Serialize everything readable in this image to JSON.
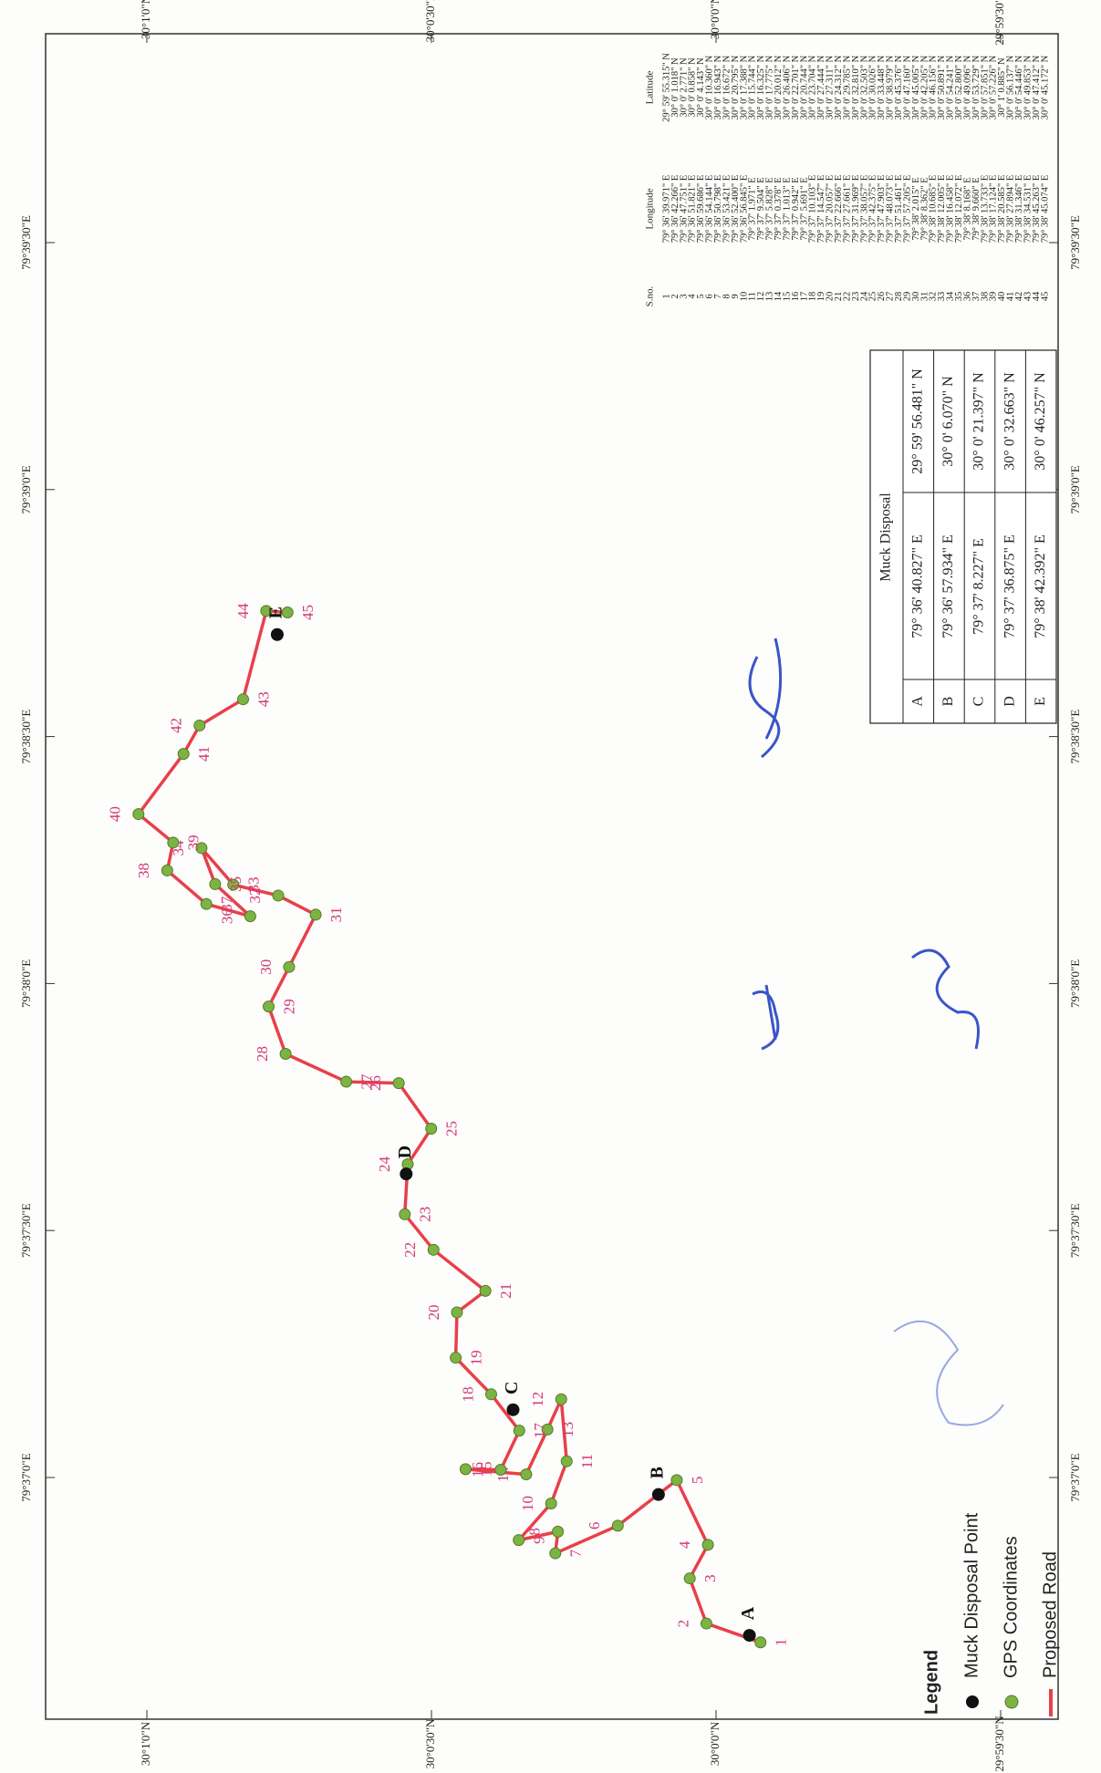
{
  "map": {
    "lat_ticks": [
      "30°1'0\"N",
      "30°0'30\"N",
      "30°0'0\"N",
      "29°59'30\"N"
    ],
    "lon_ticks": [
      "79°37'0\"E",
      "79°37'30\"E",
      "79°38'0\"E",
      "79°38'30\"E",
      "79°39'0\"E",
      "79°39'30\"E"
    ]
  },
  "gps_table": {
    "header": [
      "S.no.",
      "Longitude",
      "Latitude"
    ],
    "rows": [
      [
        "1",
        "79° 36' 39.971\" E",
        "29° 59' 55.315\" N"
      ],
      [
        "2",
        "79° 36' 42.266\" E",
        "30° 0' 1.018\" N"
      ],
      [
        "3",
        "79° 36' 47.751\" E",
        "30° 0' 2.771\" N"
      ],
      [
        "4",
        "79° 36' 51.821\" E",
        "30° 0' 0.858\" N"
      ],
      [
        "5",
        "79° 36' 59.686\" E",
        "30° 0' 4.143\" N"
      ],
      [
        "6",
        "79° 36' 54.144\" E",
        "30° 0' 10.360\" N"
      ],
      [
        "7",
        "79° 36' 50.798\" E",
        "30° 0' 16.943\" N"
      ],
      [
        "8",
        "79° 36' 53.421\" E",
        "30° 0' 16.672\" N"
      ],
      [
        "9",
        "79° 36' 52.400\" E",
        "30° 0' 20.795\" N"
      ],
      [
        "10",
        "79° 36' 56.845\" E",
        "30° 0' 17.388\" N"
      ],
      [
        "11",
        "79° 37' 1.971\" E",
        "30° 0' 15.744\" N"
      ],
      [
        "12",
        "79° 37' 9.504\" E",
        "30° 0' 16.325\" N"
      ],
      [
        "13",
        "79° 37' 5.828\" E",
        "30° 0' 17.775\" N"
      ],
      [
        "14",
        "79° 37' 0.378\" E",
        "30° 0' 20.012\" N"
      ],
      [
        "15",
        "79° 37' 1.013\" E",
        "30° 0' 26.406\" N"
      ],
      [
        "16",
        "79° 37' 0.942\" E",
        "30° 0' 22.701\" N"
      ],
      [
        "17",
        "79° 37' 5.691\" E",
        "30° 0' 20.744\" N"
      ],
      [
        "18",
        "79° 37' 10.103\" E",
        "30° 0' 23.704\" N"
      ],
      [
        "19",
        "79° 37' 14.547\" E",
        "30° 0' 27.444\" N"
      ],
      [
        "20",
        "79° 37' 20.057\" E",
        "30° 0' 27.311\" N"
      ],
      [
        "21",
        "79° 37' 22.666\" E",
        "30° 0' 24.312\" N"
      ],
      [
        "22",
        "79° 37' 27.661\" E",
        "30° 0' 29.785\" N"
      ],
      [
        "23",
        "79° 37' 31.969\" E",
        "30° 0' 32.810\" N"
      ],
      [
        "24",
        "79° 37' 38.057\" E",
        "30° 0' 32.503\" N"
      ],
      [
        "25",
        "79° 37' 42.375\" E",
        "30° 0' 30.026\" N"
      ],
      [
        "26",
        "79° 37' 47.903\" E",
        "30° 0' 33.448\" N"
      ],
      [
        "27",
        "79° 37' 48.073\" E",
        "30° 0' 38.979\" N"
      ],
      [
        "28",
        "79° 37' 51.461\" E",
        "30° 0' 45.376\" N"
      ],
      [
        "29",
        "79° 37' 57.205\" E",
        "30° 0' 47.160\" N"
      ],
      [
        "30",
        "79° 38' 2.015\" E",
        "30° 0' 45.005\" N"
      ],
      [
        "31",
        "79° 38' 8.362\" E",
        "30° 0' 42.205\" N"
      ],
      [
        "32",
        "79° 38' 10.685\" E",
        "30° 0' 46.156\" N"
      ],
      [
        "33",
        "79° 38' 12.005\" E",
        "30° 0' 50.891\" N"
      ],
      [
        "34",
        "79° 38' 16.458\" E",
        "30° 0' 54.241\" N"
      ],
      [
        "35",
        "79° 38' 12.072\" E",
        "30° 0' 52.800\" N"
      ],
      [
        "36",
        "79° 38' 8.168\" E",
        "30° 0' 49.096\" N"
      ],
      [
        "37",
        "79° 38' 9.660\" E",
        "30° 0' 53.729\" N"
      ],
      [
        "38",
        "79° 38' 13.733\" E",
        "30° 0' 57.851\" N"
      ],
      [
        "39",
        "79° 38' 17.124\" E",
        "30° 0' 57.226\" N"
      ],
      [
        "40",
        "79° 38' 20.585\" E",
        "30° 1' 0.885\" N"
      ],
      [
        "41",
        "79° 38' 27.894\" E",
        "30° 0' 56.137\" N"
      ],
      [
        "42",
        "79° 38' 31.346\" E",
        "30° 0' 54.446\" N"
      ],
      [
        "43",
        "79° 38' 34.531\" E",
        "30° 0' 49.853\" N"
      ],
      [
        "44",
        "79° 38' 45.263\" E",
        "30° 0' 47.412\" N"
      ],
      [
        "45",
        "79° 38' 45.074\" E",
        "30° 0' 45.172\" N"
      ]
    ]
  },
  "muck_table": {
    "title": "Muck Disposal",
    "rows": [
      [
        "A",
        "79° 36' 40.827\" E",
        "29° 59' 56.481\" N"
      ],
      [
        "B",
        "79° 36' 57.934\" E",
        "30° 0' 6.070\" N"
      ],
      [
        "C",
        "79° 37' 8.227\" E",
        "30° 0' 21.397\" N"
      ],
      [
        "D",
        "79° 37' 36.875\" E",
        "30° 0' 32.663\" N"
      ],
      [
        "E",
        "79° 38' 42.392\" E",
        "30° 0' 46.257\" N"
      ]
    ]
  },
  "legend": {
    "title": "Legend",
    "items": [
      "Muck Disposal Point",
      "GPS Coordinates",
      "Proposed Road"
    ]
  }
}
